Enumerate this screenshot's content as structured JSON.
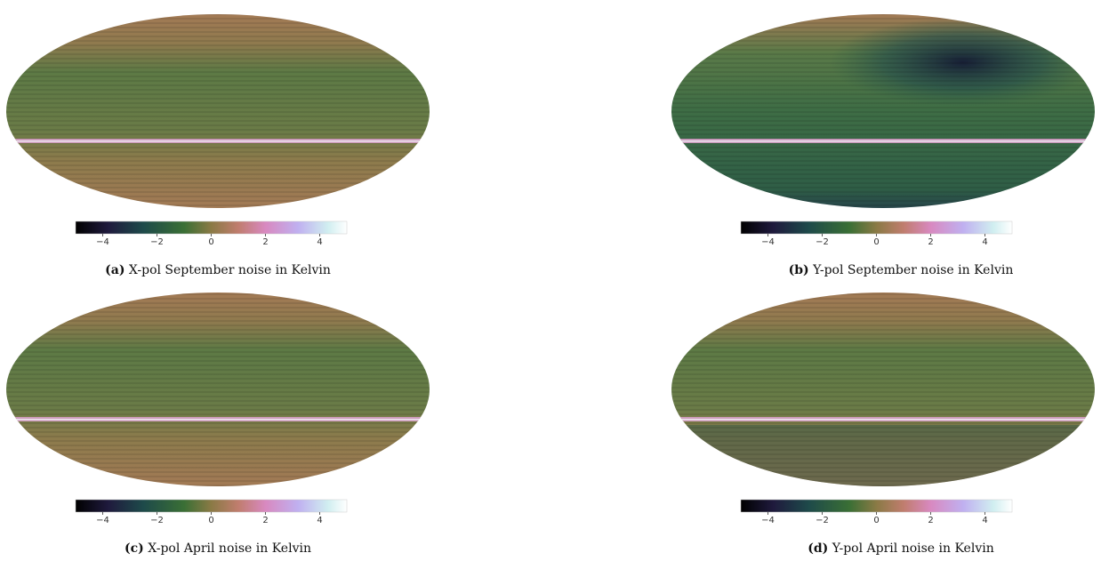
{
  "figures": [
    {
      "label": "(a)",
      "caption": "X-pol September noise in Kelvin",
      "colorbar": {
        "range": [
          -5,
          5
        ],
        "ticks": [
          {
            "value": -4,
            "label": "−4"
          },
          {
            "value": -2,
            "label": "−2"
          },
          0,
          2,
          4
        ]
      }
    },
    {
      "label": "(b)",
      "caption": "Y-pol September noise in Kelvin",
      "colorbar": {
        "range": [
          -5,
          5
        ],
        "ticks": [
          {
            "value": -4,
            "label": "−4"
          },
          {
            "value": -2,
            "label": "−2"
          },
          0,
          2,
          4
        ]
      }
    },
    {
      "label": "(c)",
      "caption": "X-pol April noise in Kelvin",
      "colorbar": {
        "range": [
          -5,
          5
        ],
        "ticks": [
          {
            "value": -4,
            "label": "−4"
          },
          {
            "value": -2,
            "label": "−2"
          },
          0,
          2,
          4
        ]
      }
    },
    {
      "label": "(d)",
      "caption": "Y-pol April noise in Kelvin",
      "colorbar": {
        "range": [
          -5,
          5
        ],
        "ticks": [
          {
            "value": -4,
            "label": "−4"
          },
          {
            "value": -2,
            "label": "−2"
          },
          0,
          2,
          4
        ]
      }
    }
  ]
}
